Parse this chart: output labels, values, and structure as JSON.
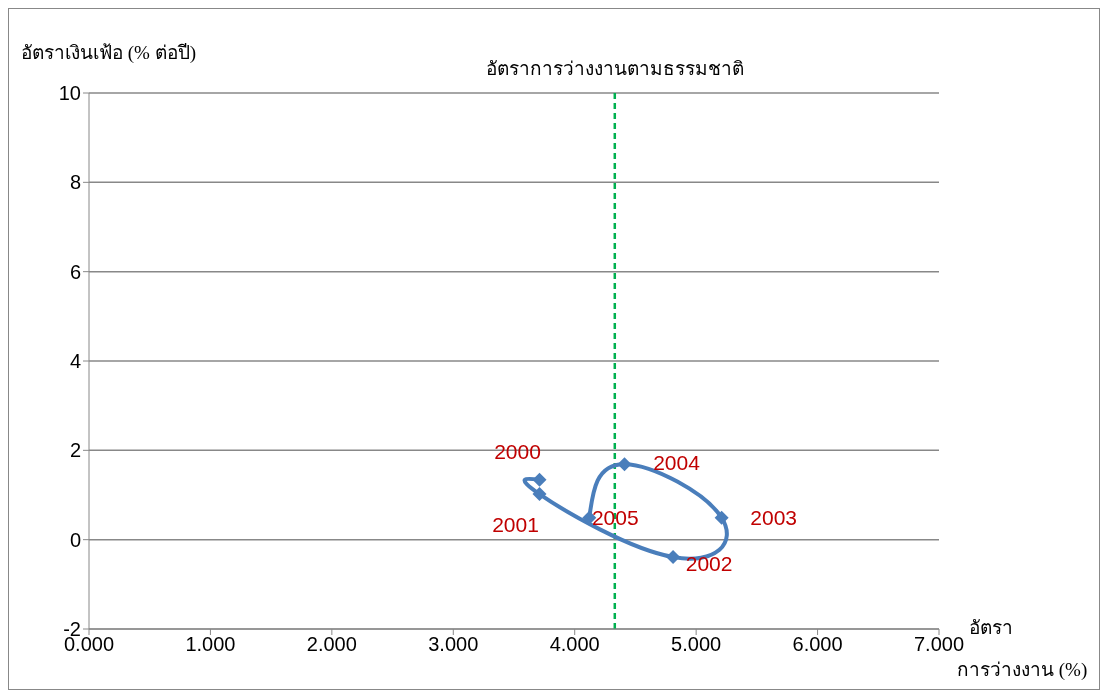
{
  "chart_data": {
    "type": "line",
    "ylabel": "อัตราเงินเฟ้อ (% ต่อปี)",
    "xlabel": "อัตรา การว่างงาน (%)",
    "x": [
      3.71,
      3.71,
      4.81,
      5.21,
      4.41,
      4.12
    ],
    "series": [
      {
        "color": "#4a7ebb",
        "values": [
          1.34,
          1.02,
          -0.39,
          0.49,
          1.69,
          0.49
        ]
      }
    ],
    "xlim": [
      0,
      7
    ],
    "xticks": [
      {
        "value": 0,
        "label": "0.000"
      },
      {
        "value": 1,
        "label": "1.000"
      },
      {
        "value": 2,
        "label": "2.000"
      },
      {
        "value": 3,
        "label": "3.000"
      },
      {
        "value": 4,
        "label": "4.000"
      },
      {
        "value": 5,
        "label": "5.000"
      },
      {
        "value": 6,
        "label": "6.000"
      },
      {
        "value": 7,
        "label": "7.000"
      }
    ],
    "ylim": [
      -2,
      10
    ],
    "yticks": [
      -2,
      0,
      2,
      4,
      6,
      8,
      10
    ],
    "grid": "y",
    "marker": "diamond",
    "line_style": "solid",
    "legend": false,
    "ref_lines": [
      {
        "axis": "x",
        "value": 4.33,
        "label": "อัตราการว่างงานตามธรรมชาติ",
        "color": "#00b050",
        "line_style": "dashed"
      }
    ],
    "annotations": [
      {
        "text": "2000",
        "x": 3.71,
        "y": 1.34
      },
      {
        "text": "2001",
        "x": 3.71,
        "y": 1.02
      },
      {
        "text": "2002",
        "x": 4.81,
        "y": -0.39
      },
      {
        "text": "2003",
        "x": 5.21,
        "y": 0.49
      },
      {
        "text": "2004",
        "x": 4.41,
        "y": 1.69
      },
      {
        "text": "2005",
        "x": 4.12,
        "y": 0.49
      }
    ]
  }
}
